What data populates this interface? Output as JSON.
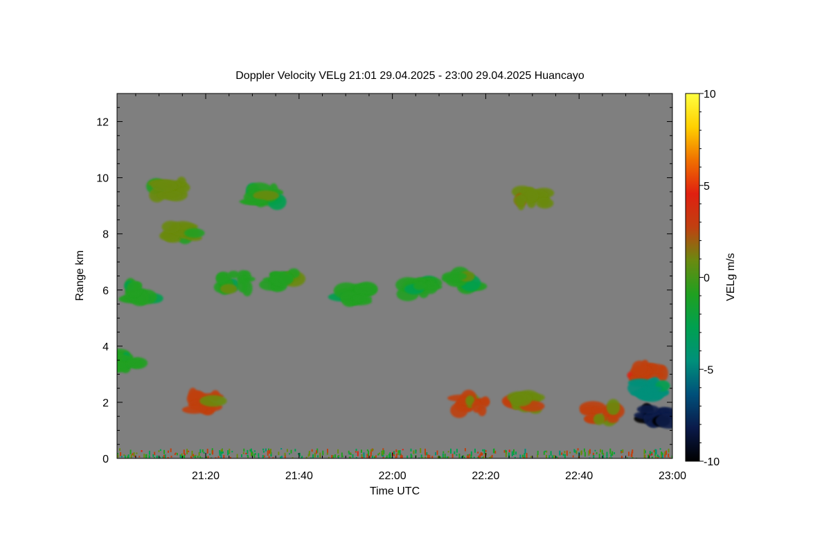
{
  "chart_data": {
    "type": "heatmap",
    "title": "Doppler Velocity VELg   21:01 29.04.2025 - 23:00 29.04.2025 Huancayo",
    "xlabel": "Time UTC",
    "ylabel": "Range km",
    "xlim": [
      "21:01",
      "23:00"
    ],
    "ylim": [
      0,
      13
    ],
    "x_ticks": [
      "21:20",
      "21:40",
      "22:00",
      "22:20",
      "22:40",
      "23:00"
    ],
    "y_ticks": [
      0,
      2,
      4,
      6,
      8,
      10,
      12
    ],
    "colorbar": {
      "label": "VELg m/s",
      "range": [
        -10,
        10
      ],
      "ticks": [
        10,
        5,
        0,
        -5,
        -10
      ],
      "colors": [
        "#000000",
        "#0a1a4a",
        "#00507a",
        "#00907a",
        "#00a050",
        "#20a020",
        "#6a8a10",
        "#c04010",
        "#e02010",
        "#f07000",
        "#ffd000",
        "#ffff40"
      ]
    },
    "background_color": "#7f7f7f",
    "echoes": [
      {
        "time": "21:12",
        "range_km": 9.6,
        "velocity": 0.5
      },
      {
        "time": "21:15",
        "range_km": 8.0,
        "velocity": 0.5
      },
      {
        "time": "21:26",
        "range_km": 6.3,
        "velocity": -1.0
      },
      {
        "time": "21:36",
        "range_km": 6.4,
        "velocity": -1.0
      },
      {
        "time": "21:06",
        "range_km": 5.9,
        "velocity": -1.5
      },
      {
        "time": "21:33",
        "range_km": 9.4,
        "velocity": -1.0
      },
      {
        "time": "21:52",
        "range_km": 5.8,
        "velocity": -1.5
      },
      {
        "time": "22:06",
        "range_km": 6.1,
        "velocity": -1.5
      },
      {
        "time": "22:15",
        "range_km": 6.3,
        "velocity": -1.0
      },
      {
        "time": "22:30",
        "range_km": 9.3,
        "velocity": 1.5
      },
      {
        "time": "22:17",
        "range_km": 1.9,
        "velocity": 2.5
      },
      {
        "time": "22:28",
        "range_km": 2.0,
        "velocity": 1.5
      },
      {
        "time": "22:55",
        "range_km": 3.0,
        "velocity": 3.5
      },
      {
        "time": "22:57",
        "range_km": 1.5,
        "velocity": -9.0
      },
      {
        "time": "22:55",
        "range_km": 2.5,
        "velocity": -4.0
      },
      {
        "time": "22:45",
        "range_km": 1.6,
        "velocity": 2.0
      },
      {
        "time": "21:20",
        "range_km": 2.0,
        "velocity": 2.5
      },
      {
        "time": "21:03",
        "range_km": 3.5,
        "velocity": -1.0
      }
    ]
  }
}
